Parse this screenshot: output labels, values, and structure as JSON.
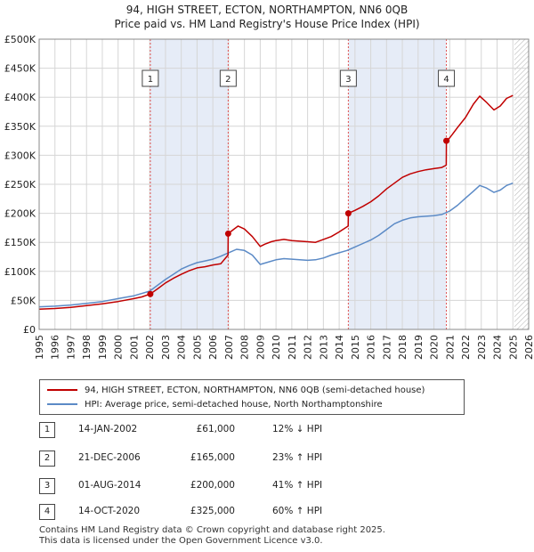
{
  "title_line1": "94, HIGH STREET, ECTON, NORTHAMPTON, NN6 0QB",
  "title_line2": "Price paid vs. HM Land Registry's House Price Index (HPI)",
  "chart_data": {
    "type": "line",
    "title": "94, HIGH STREET, ECTON, NORTHAMPTON, NN6 0QB — Price paid vs. HM Land Registry's House Price Index (HPI)",
    "xlabel": "",
    "ylabel": "",
    "xlim": [
      1995,
      2026
    ],
    "ylim": [
      0,
      500000
    ],
    "x_ticks": [
      1995,
      1996,
      1997,
      1998,
      1999,
      2000,
      2001,
      2002,
      2003,
      2004,
      2005,
      2006,
      2007,
      2008,
      2009,
      2010,
      2011,
      2012,
      2013,
      2014,
      2015,
      2016,
      2017,
      2018,
      2019,
      2020,
      2021,
      2022,
      2023,
      2024,
      2025,
      2026
    ],
    "y_ticks": [
      0,
      50000,
      100000,
      150000,
      200000,
      250000,
      300000,
      350000,
      400000,
      450000,
      500000
    ],
    "y_tick_labels": [
      "£0",
      "£50K",
      "£100K",
      "£150K",
      "£200K",
      "£250K",
      "£300K",
      "£350K",
      "£400K",
      "£450K",
      "£500K"
    ],
    "grid": true,
    "shaded_periods": [
      [
        2002.04,
        2006.97
      ],
      [
        2014.58,
        2020.79
      ]
    ],
    "future_hatch_from": 2025.1,
    "series": [
      {
        "name": "94, HIGH STREET, ECTON, NORTHAMPTON, NN6 0QB (semi-detached house)",
        "color": "#c00000",
        "x": [
          1995.0,
          1996.0,
          1997.0,
          1998.0,
          1999.0,
          2000.0,
          2001.0,
          2001.5,
          2002.04,
          2002.5,
          2003.0,
          2003.5,
          2004.0,
          2004.5,
          2005.0,
          2005.5,
          2006.0,
          2006.5,
          2006.96,
          2006.97,
          2007.3,
          2007.6,
          2008.0,
          2008.5,
          2009.0,
          2009.3,
          2009.7,
          2010.0,
          2010.5,
          2011.0,
          2011.5,
          2012.0,
          2012.5,
          2013.0,
          2013.5,
          2014.0,
          2014.57,
          2014.58,
          2015.0,
          2015.5,
          2016.0,
          2016.5,
          2017.0,
          2017.5,
          2018.0,
          2018.5,
          2019.0,
          2019.5,
          2020.0,
          2020.5,
          2020.78,
          2020.79,
          2021.0,
          2021.5,
          2022.0,
          2022.5,
          2022.9,
          2023.3,
          2023.8,
          2024.2,
          2024.6,
          2025.0
        ],
        "y": [
          35000,
          36000,
          38000,
          41000,
          44000,
          48000,
          53000,
          56000,
          61000,
          70000,
          80000,
          88000,
          95000,
          101000,
          106000,
          108000,
          111000,
          113000,
          128000,
          165000,
          172000,
          178000,
          173000,
          160000,
          143000,
          147000,
          151000,
          153000,
          155000,
          153000,
          152000,
          151000,
          150000,
          155000,
          160000,
          168000,
          178000,
          200000,
          205000,
          212000,
          220000,
          230000,
          242000,
          252000,
          262000,
          268000,
          272000,
          275000,
          277000,
          279000,
          283000,
          325000,
          330000,
          348000,
          365000,
          388000,
          402000,
          392000,
          378000,
          385000,
          398000,
          403000
        ]
      },
      {
        "name": "HPI: Average price, semi-detached house, North Northamptonshire",
        "color": "#5b8ac6",
        "x": [
          1995.0,
          1996.0,
          1997.0,
          1998.0,
          1999.0,
          2000.0,
          2001.0,
          2002.0,
          2002.5,
          2003.0,
          2003.5,
          2004.0,
          2004.5,
          2005.0,
          2005.5,
          2006.0,
          2006.5,
          2007.0,
          2007.5,
          2008.0,
          2008.5,
          2009.0,
          2009.5,
          2010.0,
          2010.5,
          2011.0,
          2011.5,
          2012.0,
          2012.5,
          2013.0,
          2013.5,
          2014.0,
          2014.5,
          2015.0,
          2015.5,
          2016.0,
          2016.5,
          2017.0,
          2017.5,
          2018.0,
          2018.5,
          2019.0,
          2019.5,
          2020.0,
          2020.5,
          2021.0,
          2021.5,
          2022.0,
          2022.5,
          2022.9,
          2023.3,
          2023.8,
          2024.2,
          2024.6,
          2025.0
        ],
        "y": [
          39000,
          40000,
          42000,
          45000,
          48000,
          53000,
          58000,
          66000,
          76000,
          86000,
          95000,
          104000,
          110000,
          115000,
          118000,
          121000,
          126000,
          132000,
          138000,
          136000,
          128000,
          112000,
          116000,
          120000,
          122000,
          121000,
          120000,
          119000,
          120000,
          123000,
          128000,
          132000,
          136000,
          142000,
          148000,
          154000,
          162000,
          172000,
          182000,
          188000,
          192000,
          194000,
          195000,
          196000,
          198000,
          204000,
          214000,
          226000,
          238000,
          248000,
          244000,
          236000,
          240000,
          248000,
          252000
        ]
      }
    ],
    "transactions": [
      {
        "label": "1",
        "x": 2002.04,
        "price": 61000
      },
      {
        "label": "2",
        "x": 2006.97,
        "price": 165000
      },
      {
        "label": "3",
        "x": 2014.58,
        "price": 200000
      },
      {
        "label": "4",
        "x": 2020.79,
        "price": 325000
      }
    ]
  },
  "legend": [
    {
      "label": "94, HIGH STREET, ECTON, NORTHAMPTON, NN6 0QB (semi-detached house)",
      "color": "#c00000"
    },
    {
      "label": "HPI: Average price, semi-detached house, North Northamptonshire",
      "color": "#5b8ac6"
    }
  ],
  "sales": [
    {
      "num": "1",
      "date": "14-JAN-2002",
      "price": "£61,000",
      "hpi": "12% ↓ HPI"
    },
    {
      "num": "2",
      "date": "21-DEC-2006",
      "price": "£165,000",
      "hpi": "23% ↑ HPI"
    },
    {
      "num": "3",
      "date": "01-AUG-2014",
      "price": "£200,000",
      "hpi": "41% ↑ HPI"
    },
    {
      "num": "4",
      "date": "14-OCT-2020",
      "price": "£325,000",
      "hpi": "60% ↑ HPI"
    }
  ],
  "footer_line1": "Contains HM Land Registry data © Crown copyright and database right 2025.",
  "footer_line2": "This data is licensed under the Open Government Licence v3.0."
}
